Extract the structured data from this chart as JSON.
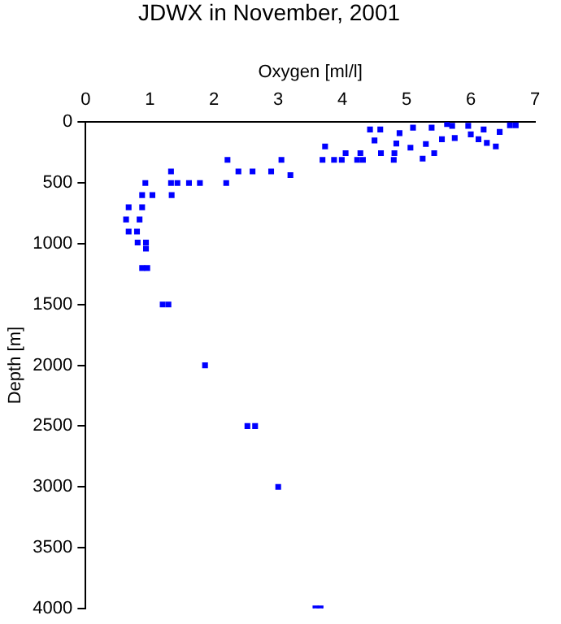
{
  "chart_data": {
    "type": "scatter",
    "title": "JDWX in November, 2001",
    "xlabel": "Oxygen [ml/l]",
    "ylabel": "Depth [m]",
    "x": [
      4.43,
      4.59,
      4.89,
      5.1,
      5.39,
      5.63,
      5.71,
      5.96,
      6.2,
      6.45,
      6.61,
      6.7,
      4.5,
      4.84,
      5.06,
      5.3,
      5.55,
      5.75,
      6.0,
      6.12,
      6.25,
      6.39,
      3.73,
      4.6,
      4.81,
      5.25,
      5.43,
      4.8,
      4.05,
      4.28,
      3.69,
      3.87,
      3.99,
      4.23,
      4.32,
      2.21,
      3.05,
      2.38,
      2.6,
      2.89,
      3.19,
      2.19,
      1.78,
      1.61,
      1.43,
      1.33,
      1.33,
      1.34,
      0.93,
      0.88,
      1.04,
      0.67,
      0.88,
      0.63,
      0.84,
      0.67,
      0.8,
      0.81,
      0.94,
      0.94,
      0.88,
      0.96,
      1.2,
      1.29,
      1.86,
      2.52,
      2.64,
      3.0,
      3.58,
      3.66
    ],
    "values": [
      60,
      60,
      90,
      45,
      45,
      15,
      30,
      30,
      60,
      80,
      25,
      25,
      150,
      175,
      210,
      180,
      140,
      130,
      100,
      140,
      170,
      200,
      200,
      255,
      255,
      300,
      255,
      310,
      255,
      255,
      310,
      310,
      310,
      310,
      310,
      310,
      310,
      405,
      405,
      405,
      435,
      500,
      500,
      500,
      500,
      500,
      405,
      600,
      500,
      600,
      600,
      700,
      700,
      800,
      800,
      900,
      900,
      990,
      990,
      1040,
      1200,
      1200,
      1500,
      1500,
      2000,
      2500,
      2500,
      3000,
      4000,
      4000
    ],
    "color": "#0000ff",
    "marker": "square",
    "xlim": [
      0,
      7
    ],
    "xticks": [
      0,
      1,
      2,
      3,
      4,
      5,
      6,
      7
    ],
    "ylim": [
      4000,
      0
    ],
    "yticks": [
      0,
      500,
      1000,
      1500,
      2000,
      2500,
      3000,
      3500,
      4000
    ],
    "grid": false,
    "legend": false
  }
}
